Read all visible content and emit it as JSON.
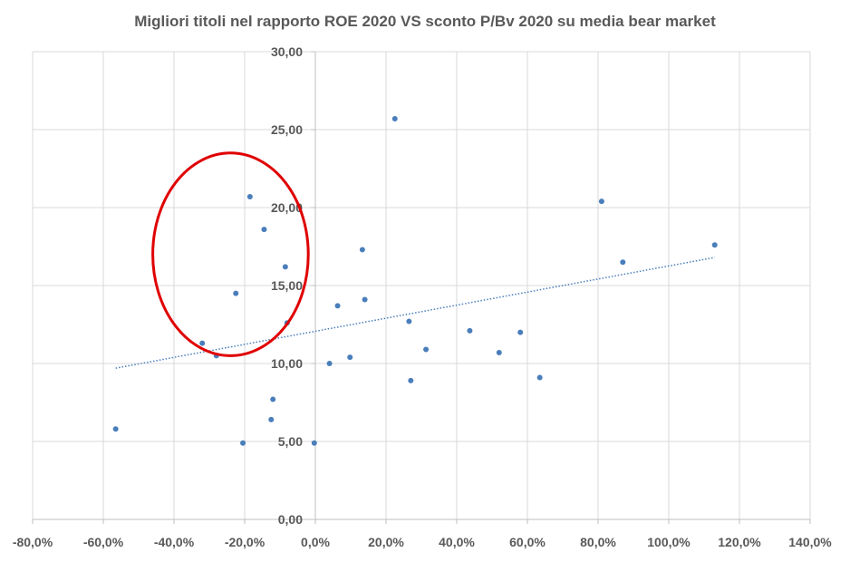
{
  "chart_data": {
    "type": "scatter",
    "title": "Migliori titoli nel rapporto ROE 2020 VS sconto P/Bv 2020 su media bear market",
    "xlabel": "",
    "ylabel": "",
    "xlim": [
      -0.8,
      1.4
    ],
    "ylim": [
      0,
      30
    ],
    "x_ticks": [
      -0.8,
      -0.6,
      -0.4,
      -0.2,
      0.0,
      0.2,
      0.4,
      0.6,
      0.8,
      1.0,
      1.2,
      1.4
    ],
    "x_tick_labels": [
      "-80,0%",
      "-60,0%",
      "-40,0%",
      "-20,0%",
      "0,0%",
      "20,0%",
      "40,0%",
      "60,0%",
      "80,0%",
      "100,0%",
      "120,0%",
      "140,0%"
    ],
    "y_ticks": [
      0,
      5,
      10,
      15,
      20,
      25,
      30
    ],
    "y_tick_labels": [
      "0,00",
      "5,00",
      "10,00",
      "15,00",
      "20,00",
      "25,00",
      "30,00"
    ],
    "grid": true,
    "legend": "none",
    "point_color": "#4a7ebb",
    "trendline": {
      "type": "linear",
      "x": [
        -0.565,
        1.13
      ],
      "y": [
        9.7,
        16.8
      ],
      "color": "#4a7ebb"
    },
    "annotation": {
      "shape": "ellipse",
      "color": "#e00000",
      "cx": -0.24,
      "cy": 17.0,
      "rx": 0.22,
      "ry": 6.5
    },
    "points": [
      {
        "x": -0.565,
        "y": 5.8
      },
      {
        "x": -0.32,
        "y": 11.3
      },
      {
        "x": -0.28,
        "y": 10.5
      },
      {
        "x": -0.225,
        "y": 14.5
      },
      {
        "x": -0.205,
        "y": 4.9
      },
      {
        "x": -0.185,
        "y": 20.7
      },
      {
        "x": -0.145,
        "y": 18.6
      },
      {
        "x": -0.125,
        "y": 6.4
      },
      {
        "x": -0.12,
        "y": 7.7
      },
      {
        "x": -0.085,
        "y": 16.2
      },
      {
        "x": -0.08,
        "y": 12.6
      },
      {
        "x": -0.003,
        "y": 4.9
      },
      {
        "x": 0.04,
        "y": 10.0
      },
      {
        "x": 0.063,
        "y": 13.7
      },
      {
        "x": 0.098,
        "y": 10.4
      },
      {
        "x": 0.133,
        "y": 17.3
      },
      {
        "x": 0.14,
        "y": 14.1
      },
      {
        "x": 0.225,
        "y": 25.7
      },
      {
        "x": 0.265,
        "y": 12.7
      },
      {
        "x": 0.27,
        "y": 8.9
      },
      {
        "x": 0.313,
        "y": 10.9
      },
      {
        "x": 0.437,
        "y": 12.1
      },
      {
        "x": 0.52,
        "y": 10.7
      },
      {
        "x": 0.58,
        "y": 12.0
      },
      {
        "x": 0.635,
        "y": 9.1
      },
      {
        "x": 0.81,
        "y": 20.4
      },
      {
        "x": 0.87,
        "y": 16.5
      },
      {
        "x": 1.13,
        "y": 17.6
      }
    ]
  }
}
